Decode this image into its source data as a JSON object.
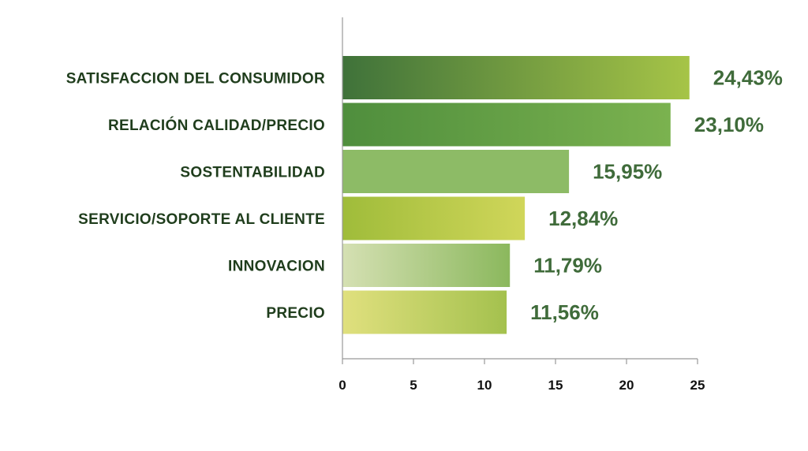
{
  "chart_data": {
    "type": "bar",
    "orientation": "horizontal",
    "categories": [
      "SATISFACCION DEL CONSUMIDOR",
      "RELACIÓN CALIDAD/PRECIO",
      "SOSTENTABILIDAD",
      "SERVICIO/SOPORTE AL CLIENTE",
      "INNOVACION",
      "PRECIO"
    ],
    "values": [
      24.43,
      23.1,
      15.95,
      12.84,
      11.79,
      11.56
    ],
    "value_labels": [
      "24,43%",
      "23,10%",
      "15,95%",
      "12,84%",
      "11,79%",
      "11,56%"
    ],
    "xlim": [
      0,
      25
    ],
    "x_ticks": [
      "0",
      "5",
      "10",
      "15",
      "20",
      "25"
    ],
    "grid": false,
    "bar_gradients": [
      [
        "#3f723a",
        "#a6c447"
      ],
      [
        "#4f8e3d",
        "#7bb24f"
      ],
      [
        "#8dbb66",
        "#8dbb66"
      ],
      [
        "#9fbc3a",
        "#d0d65a"
      ],
      [
        "#d5e0b3",
        "#8bb85d"
      ],
      [
        "#e0e07e",
        "#a4c14e"
      ]
    ],
    "colors": {
      "value_text": "#3f6b3a",
      "category_text": "#1f3d1c",
      "axis": "#999999"
    }
  }
}
